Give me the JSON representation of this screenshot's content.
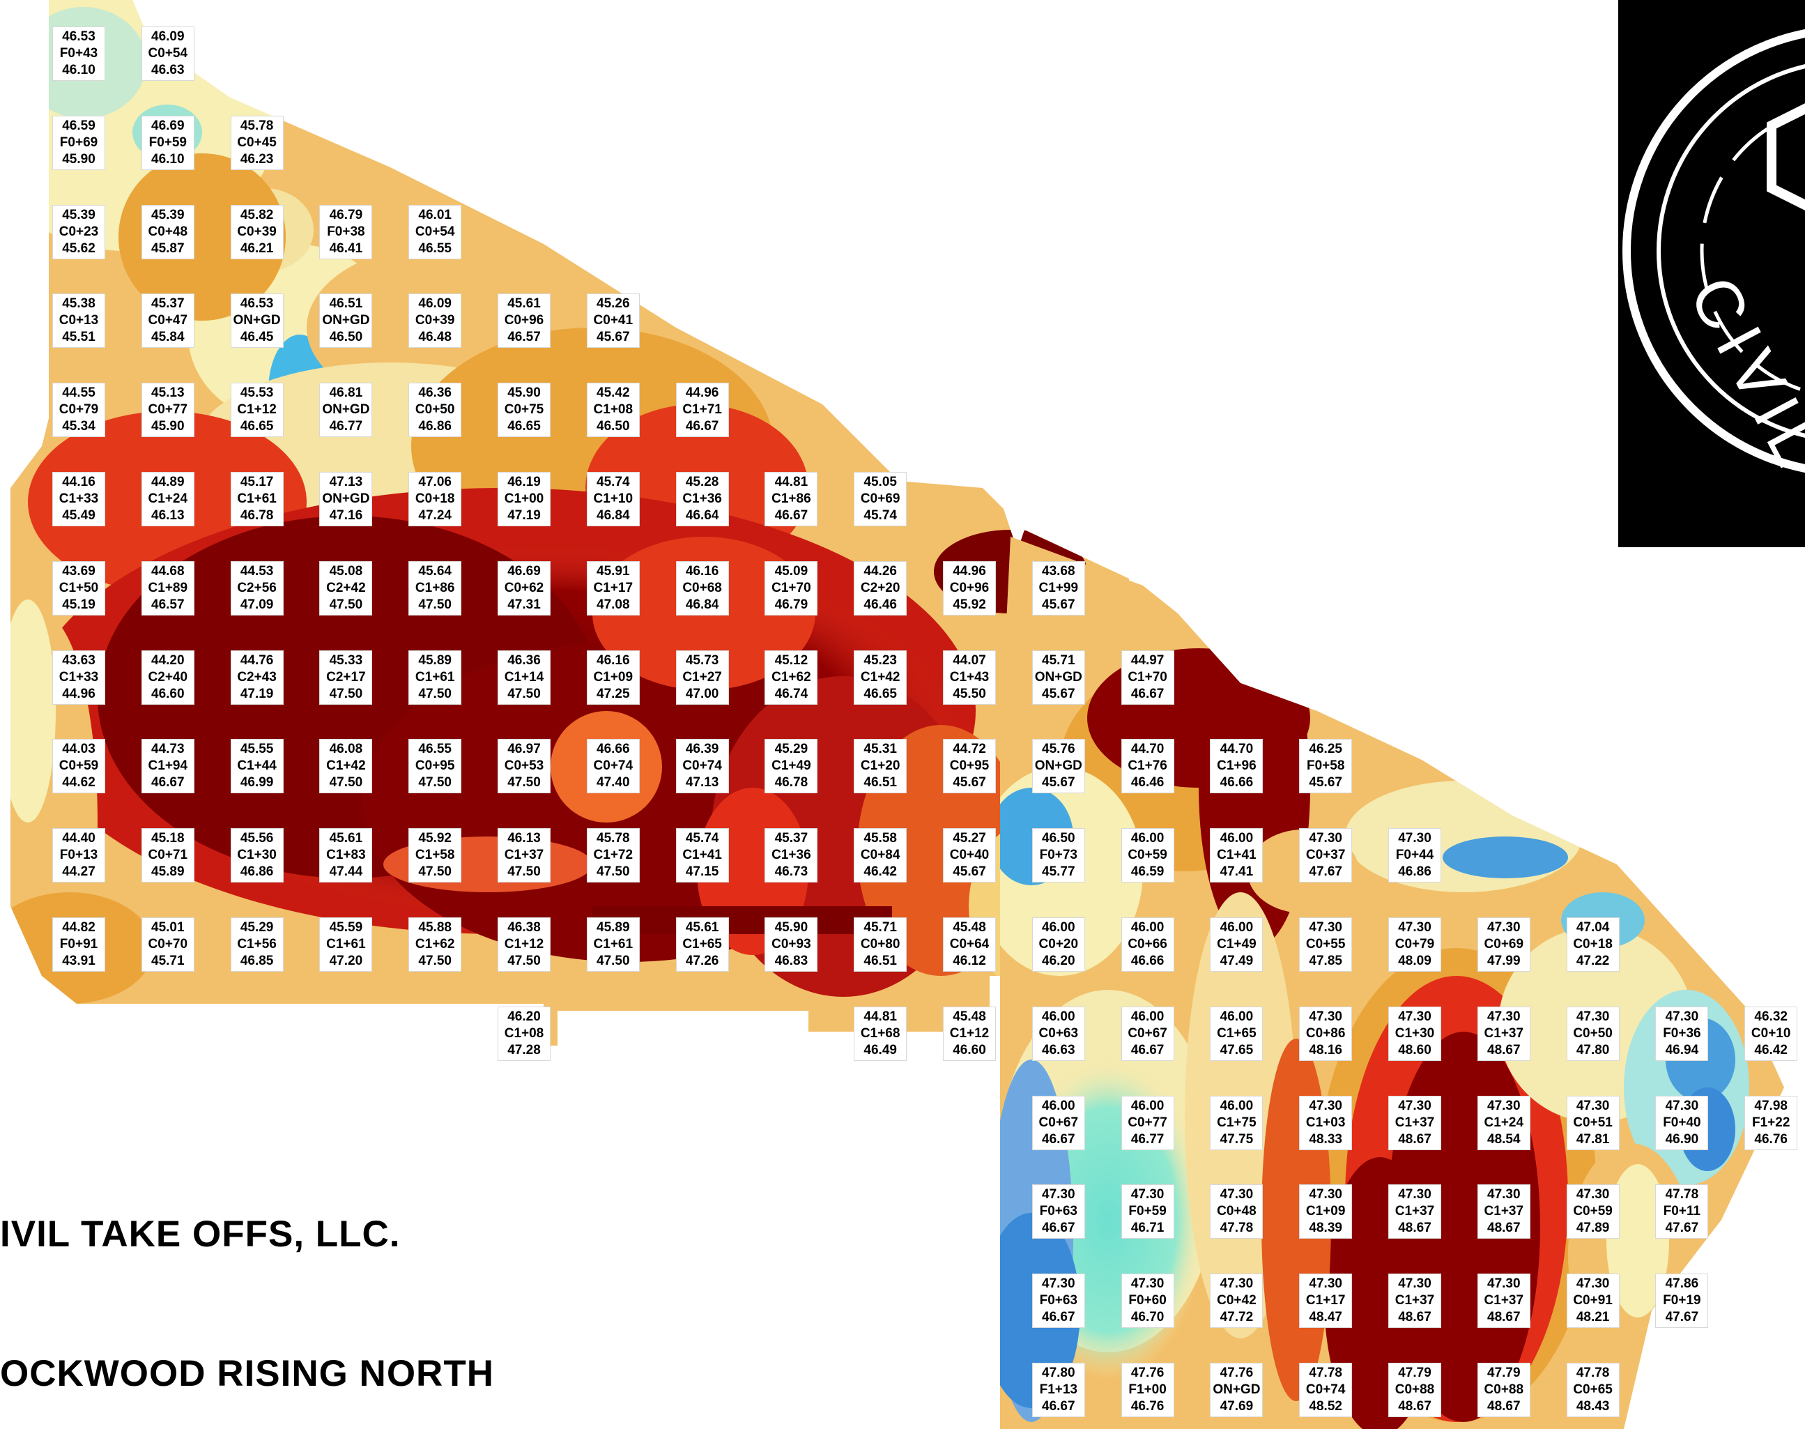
{
  "company_name": "IVIL TAKE OFFS, LLC.",
  "project_name": "OCKWOOD RISING NORTH",
  "logo": {
    "text": "CIVIL T",
    "icon": "hexagon-seal-icon"
  },
  "legend_colors": {
    "lowest": "#2a7fd4",
    "low": "#6ee3cc",
    "mid_low": "#f7efb0",
    "mid": "#eaa43a",
    "mid_high": "#e43a1a",
    "highest": "#8a0000"
  },
  "grid": {
    "columns": 21,
    "rows": 16,
    "cells": [
      {
        "col": 0,
        "row": 0,
        "top": "46.53",
        "mid": "F0+43",
        "bottom": "46.10"
      },
      {
        "col": 1,
        "row": 0,
        "top": "46.09",
        "mid": "C0+54",
        "bottom": "46.63"
      },
      {
        "col": 0,
        "row": 1,
        "top": "46.59",
        "mid": "F0+69",
        "bottom": "45.90"
      },
      {
        "col": 1,
        "row": 1,
        "top": "46.69",
        "mid": "F0+59",
        "bottom": "46.10"
      },
      {
        "col": 2,
        "row": 1,
        "top": "45.78",
        "mid": "C0+45",
        "bottom": "46.23"
      },
      {
        "col": 0,
        "row": 2,
        "top": "45.39",
        "mid": "C0+23",
        "bottom": "45.62"
      },
      {
        "col": 1,
        "row": 2,
        "top": "45.39",
        "mid": "C0+48",
        "bottom": "45.87"
      },
      {
        "col": 2,
        "row": 2,
        "top": "45.82",
        "mid": "C0+39",
        "bottom": "46.21"
      },
      {
        "col": 3,
        "row": 2,
        "top": "46.79",
        "mid": "F0+38",
        "bottom": "46.41"
      },
      {
        "col": 4,
        "row": 2,
        "top": "46.01",
        "mid": "C0+54",
        "bottom": "46.55"
      },
      {
        "col": 0,
        "row": 3,
        "top": "45.38",
        "mid": "C0+13",
        "bottom": "45.51"
      },
      {
        "col": 1,
        "row": 3,
        "top": "45.37",
        "mid": "C0+47",
        "bottom": "45.84"
      },
      {
        "col": 2,
        "row": 3,
        "top": "46.53",
        "mid": "ON+GD",
        "bottom": "46.45"
      },
      {
        "col": 3,
        "row": 3,
        "top": "46.51",
        "mid": "ON+GD",
        "bottom": "46.50"
      },
      {
        "col": 4,
        "row": 3,
        "top": "46.09",
        "mid": "C0+39",
        "bottom": "46.48"
      },
      {
        "col": 5,
        "row": 3,
        "top": "45.61",
        "mid": "C0+96",
        "bottom": "46.57"
      },
      {
        "col": 6,
        "row": 3,
        "top": "45.26",
        "mid": "C0+41",
        "bottom": "45.67"
      },
      {
        "col": 0,
        "row": 4,
        "top": "44.55",
        "mid": "C0+79",
        "bottom": "45.34"
      },
      {
        "col": 1,
        "row": 4,
        "top": "45.13",
        "mid": "C0+77",
        "bottom": "45.90"
      },
      {
        "col": 2,
        "row": 4,
        "top": "45.53",
        "mid": "C1+12",
        "bottom": "46.65"
      },
      {
        "col": 3,
        "row": 4,
        "top": "46.81",
        "mid": "ON+GD",
        "bottom": "46.77"
      },
      {
        "col": 4,
        "row": 4,
        "top": "46.36",
        "mid": "C0+50",
        "bottom": "46.86"
      },
      {
        "col": 5,
        "row": 4,
        "top": "45.90",
        "mid": "C0+75",
        "bottom": "46.65"
      },
      {
        "col": 6,
        "row": 4,
        "top": "45.42",
        "mid": "C1+08",
        "bottom": "46.50"
      },
      {
        "col": 7,
        "row": 4,
        "top": "44.96",
        "mid": "C1+71",
        "bottom": "46.67"
      },
      {
        "col": 0,
        "row": 5,
        "top": "44.16",
        "mid": "C1+33",
        "bottom": "45.49"
      },
      {
        "col": 1,
        "row": 5,
        "top": "44.89",
        "mid": "C1+24",
        "bottom": "46.13"
      },
      {
        "col": 2,
        "row": 5,
        "top": "45.17",
        "mid": "C1+61",
        "bottom": "46.78"
      },
      {
        "col": 3,
        "row": 5,
        "top": "47.13",
        "mid": "ON+GD",
        "bottom": "47.16"
      },
      {
        "col": 4,
        "row": 5,
        "top": "47.06",
        "mid": "C0+18",
        "bottom": "47.24"
      },
      {
        "col": 5,
        "row": 5,
        "top": "46.19",
        "mid": "C1+00",
        "bottom": "47.19"
      },
      {
        "col": 6,
        "row": 5,
        "top": "45.74",
        "mid": "C1+10",
        "bottom": "46.84"
      },
      {
        "col": 7,
        "row": 5,
        "top": "45.28",
        "mid": "C1+36",
        "bottom": "46.64"
      },
      {
        "col": 8,
        "row": 5,
        "top": "44.81",
        "mid": "C1+86",
        "bottom": "46.67"
      },
      {
        "col": 9,
        "row": 5,
        "top": "45.05",
        "mid": "C0+69",
        "bottom": "45.74"
      },
      {
        "col": 0,
        "row": 6,
        "top": "43.69",
        "mid": "C1+50",
        "bottom": "45.19"
      },
      {
        "col": 1,
        "row": 6,
        "top": "44.68",
        "mid": "C1+89",
        "bottom": "46.57"
      },
      {
        "col": 2,
        "row": 6,
        "top": "44.53",
        "mid": "C2+56",
        "bottom": "47.09"
      },
      {
        "col": 3,
        "row": 6,
        "top": "45.08",
        "mid": "C2+42",
        "bottom": "47.50"
      },
      {
        "col": 4,
        "row": 6,
        "top": "45.64",
        "mid": "C1+86",
        "bottom": "47.50"
      },
      {
        "col": 5,
        "row": 6,
        "top": "46.69",
        "mid": "C0+62",
        "bottom": "47.31"
      },
      {
        "col": 6,
        "row": 6,
        "top": "45.91",
        "mid": "C1+17",
        "bottom": "47.08"
      },
      {
        "col": 7,
        "row": 6,
        "top": "46.16",
        "mid": "C0+68",
        "bottom": "46.84"
      },
      {
        "col": 8,
        "row": 6,
        "top": "45.09",
        "mid": "C1+70",
        "bottom": "46.79"
      },
      {
        "col": 9,
        "row": 6,
        "top": "44.26",
        "mid": "C2+20",
        "bottom": "46.46"
      },
      {
        "col": 10,
        "row": 6,
        "top": "44.96",
        "mid": "C0+96",
        "bottom": "45.92"
      },
      {
        "col": 11,
        "row": 6,
        "top": "43.68",
        "mid": "C1+99",
        "bottom": "45.67"
      },
      {
        "col": 0,
        "row": 7,
        "top": "43.63",
        "mid": "C1+33",
        "bottom": "44.96"
      },
      {
        "col": 1,
        "row": 7,
        "top": "44.20",
        "mid": "C2+40",
        "bottom": "46.60"
      },
      {
        "col": 2,
        "row": 7,
        "top": "44.76",
        "mid": "C2+43",
        "bottom": "47.19"
      },
      {
        "col": 3,
        "row": 7,
        "top": "45.33",
        "mid": "C2+17",
        "bottom": "47.50"
      },
      {
        "col": 4,
        "row": 7,
        "top": "45.89",
        "mid": "C1+61",
        "bottom": "47.50"
      },
      {
        "col": 5,
        "row": 7,
        "top": "46.36",
        "mid": "C1+14",
        "bottom": "47.50"
      },
      {
        "col": 6,
        "row": 7,
        "top": "46.16",
        "mid": "C1+09",
        "bottom": "47.25"
      },
      {
        "col": 7,
        "row": 7,
        "top": "45.73",
        "mid": "C1+27",
        "bottom": "47.00"
      },
      {
        "col": 8,
        "row": 7,
        "top": "45.12",
        "mid": "C1+62",
        "bottom": "46.74"
      },
      {
        "col": 9,
        "row": 7,
        "top": "45.23",
        "mid": "C1+42",
        "bottom": "46.65"
      },
      {
        "col": 10,
        "row": 7,
        "top": "44.07",
        "mid": "C1+43",
        "bottom": "45.50"
      },
      {
        "col": 11,
        "row": 7,
        "top": "45.71",
        "mid": "ON+GD",
        "bottom": "45.67"
      },
      {
        "col": 12,
        "row": 7,
        "top": "44.97",
        "mid": "C1+70",
        "bottom": "46.67"
      },
      {
        "col": 0,
        "row": 8,
        "top": "44.03",
        "mid": "C0+59",
        "bottom": "44.62"
      },
      {
        "col": 1,
        "row": 8,
        "top": "44.73",
        "mid": "C1+94",
        "bottom": "46.67"
      },
      {
        "col": 2,
        "row": 8,
        "top": "45.55",
        "mid": "C1+44",
        "bottom": "46.99"
      },
      {
        "col": 3,
        "row": 8,
        "top": "46.08",
        "mid": "C1+42",
        "bottom": "47.50"
      },
      {
        "col": 4,
        "row": 8,
        "top": "46.55",
        "mid": "C0+95",
        "bottom": "47.50"
      },
      {
        "col": 5,
        "row": 8,
        "top": "46.97",
        "mid": "C0+53",
        "bottom": "47.50"
      },
      {
        "col": 6,
        "row": 8,
        "top": "46.66",
        "mid": "C0+74",
        "bottom": "47.40"
      },
      {
        "col": 7,
        "row": 8,
        "top": "46.39",
        "mid": "C0+74",
        "bottom": "47.13"
      },
      {
        "col": 8,
        "row": 8,
        "top": "45.29",
        "mid": "C1+49",
        "bottom": "46.78"
      },
      {
        "col": 9,
        "row": 8,
        "top": "45.31",
        "mid": "C1+20",
        "bottom": "46.51"
      },
      {
        "col": 10,
        "row": 8,
        "top": "44.72",
        "mid": "C0+95",
        "bottom": "45.67"
      },
      {
        "col": 11,
        "row": 8,
        "top": "45.76",
        "mid": "ON+GD",
        "bottom": "45.67"
      },
      {
        "col": 12,
        "row": 8,
        "top": "44.70",
        "mid": "C1+76",
        "bottom": "46.46"
      },
      {
        "col": 13,
        "row": 8,
        "top": "44.70",
        "mid": "C1+96",
        "bottom": "46.66"
      },
      {
        "col": 14,
        "row": 8,
        "top": "46.25",
        "mid": "F0+58",
        "bottom": "45.67"
      },
      {
        "col": 0,
        "row": 9,
        "top": "44.40",
        "mid": "F0+13",
        "bottom": "44.27"
      },
      {
        "col": 1,
        "row": 9,
        "top": "45.18",
        "mid": "C0+71",
        "bottom": "45.89"
      },
      {
        "col": 2,
        "row": 9,
        "top": "45.56",
        "mid": "C1+30",
        "bottom": "46.86"
      },
      {
        "col": 3,
        "row": 9,
        "top": "45.61",
        "mid": "C1+83",
        "bottom": "47.44"
      },
      {
        "col": 4,
        "row": 9,
        "top": "45.92",
        "mid": "C1+58",
        "bottom": "47.50"
      },
      {
        "col": 5,
        "row": 9,
        "top": "46.13",
        "mid": "C1+37",
        "bottom": "47.50"
      },
      {
        "col": 6,
        "row": 9,
        "top": "45.78",
        "mid": "C1+72",
        "bottom": "47.50"
      },
      {
        "col": 7,
        "row": 9,
        "top": "45.74",
        "mid": "C1+41",
        "bottom": "47.15"
      },
      {
        "col": 8,
        "row": 9,
        "top": "45.37",
        "mid": "C1+36",
        "bottom": "46.73"
      },
      {
        "col": 9,
        "row": 9,
        "top": "45.58",
        "mid": "C0+84",
        "bottom": "46.42"
      },
      {
        "col": 10,
        "row": 9,
        "top": "45.27",
        "mid": "C0+40",
        "bottom": "45.67"
      },
      {
        "col": 11,
        "row": 9,
        "top": "46.50",
        "mid": "F0+73",
        "bottom": "45.77"
      },
      {
        "col": 12,
        "row": 9,
        "top": "46.00",
        "mid": "C0+59",
        "bottom": "46.59"
      },
      {
        "col": 13,
        "row": 9,
        "top": "46.00",
        "mid": "C1+41",
        "bottom": "47.41"
      },
      {
        "col": 14,
        "row": 9,
        "top": "47.30",
        "mid": "C0+37",
        "bottom": "47.67"
      },
      {
        "col": 15,
        "row": 9,
        "top": "47.30",
        "mid": "F0+44",
        "bottom": "46.86"
      },
      {
        "col": 0,
        "row": 10,
        "top": "44.82",
        "mid": "F0+91",
        "bottom": "43.91"
      },
      {
        "col": 1,
        "row": 10,
        "top": "45.01",
        "mid": "C0+70",
        "bottom": "45.71"
      },
      {
        "col": 2,
        "row": 10,
        "top": "45.29",
        "mid": "C1+56",
        "bottom": "46.85"
      },
      {
        "col": 3,
        "row": 10,
        "top": "45.59",
        "mid": "C1+61",
        "bottom": "47.20"
      },
      {
        "col": 4,
        "row": 10,
        "top": "45.88",
        "mid": "C1+62",
        "bottom": "47.50"
      },
      {
        "col": 5,
        "row": 10,
        "top": "46.38",
        "mid": "C1+12",
        "bottom": "47.50"
      },
      {
        "col": 6,
        "row": 10,
        "top": "45.89",
        "mid": "C1+61",
        "bottom": "47.50"
      },
      {
        "col": 7,
        "row": 10,
        "top": "45.61",
        "mid": "C1+65",
        "bottom": "47.26"
      },
      {
        "col": 8,
        "row": 10,
        "top": "45.90",
        "mid": "C0+93",
        "bottom": "46.83"
      },
      {
        "col": 9,
        "row": 10,
        "top": "45.71",
        "mid": "C0+80",
        "bottom": "46.51"
      },
      {
        "col": 10,
        "row": 10,
        "top": "45.48",
        "mid": "C0+64",
        "bottom": "46.12"
      },
      {
        "col": 11,
        "row": 10,
        "top": "46.00",
        "mid": "C0+20",
        "bottom": "46.20"
      },
      {
        "col": 12,
        "row": 10,
        "top": "46.00",
        "mid": "C0+66",
        "bottom": "46.66"
      },
      {
        "col": 13,
        "row": 10,
        "top": "46.00",
        "mid": "C1+49",
        "bottom": "47.49"
      },
      {
        "col": 14,
        "row": 10,
        "top": "47.30",
        "mid": "C0+55",
        "bottom": "47.85"
      },
      {
        "col": 15,
        "row": 10,
        "top": "47.30",
        "mid": "C0+79",
        "bottom": "48.09"
      },
      {
        "col": 16,
        "row": 10,
        "top": "47.30",
        "mid": "C0+69",
        "bottom": "47.99"
      },
      {
        "col": 17,
        "row": 10,
        "top": "47.04",
        "mid": "C0+18",
        "bottom": "47.22"
      },
      {
        "col": 5,
        "row": 11,
        "top": "46.20",
        "mid": "C1+08",
        "bottom": "47.28"
      },
      {
        "col": 9,
        "row": 11,
        "top": "44.81",
        "mid": "C1+68",
        "bottom": "46.49"
      },
      {
        "col": 10,
        "row": 11,
        "top": "45.48",
        "mid": "C1+12",
        "bottom": "46.60"
      },
      {
        "col": 11,
        "row": 11,
        "top": "46.00",
        "mid": "C0+63",
        "bottom": "46.63"
      },
      {
        "col": 12,
        "row": 11,
        "top": "46.00",
        "mid": "C0+67",
        "bottom": "46.67"
      },
      {
        "col": 13,
        "row": 11,
        "top": "46.00",
        "mid": "C1+65",
        "bottom": "47.65"
      },
      {
        "col": 14,
        "row": 11,
        "top": "47.30",
        "mid": "C0+86",
        "bottom": "48.16"
      },
      {
        "col": 15,
        "row": 11,
        "top": "47.30",
        "mid": "C1+30",
        "bottom": "48.60"
      },
      {
        "col": 16,
        "row": 11,
        "top": "47.30",
        "mid": "C1+37",
        "bottom": "48.67"
      },
      {
        "col": 17,
        "row": 11,
        "top": "47.30",
        "mid": "C0+50",
        "bottom": "47.80"
      },
      {
        "col": 18,
        "row": 11,
        "top": "47.30",
        "mid": "F0+36",
        "bottom": "46.94"
      },
      {
        "col": 19,
        "row": 11,
        "top": "46.32",
        "mid": "C0+10",
        "bottom": "46.42"
      },
      {
        "col": 11,
        "row": 12,
        "top": "46.00",
        "mid": "C0+67",
        "bottom": "46.67"
      },
      {
        "col": 12,
        "row": 12,
        "top": "46.00",
        "mid": "C0+77",
        "bottom": "46.77"
      },
      {
        "col": 13,
        "row": 12,
        "top": "46.00",
        "mid": "C1+75",
        "bottom": "47.75"
      },
      {
        "col": 14,
        "row": 12,
        "top": "47.30",
        "mid": "C1+03",
        "bottom": "48.33"
      },
      {
        "col": 15,
        "row": 12,
        "top": "47.30",
        "mid": "C1+37",
        "bottom": "48.67"
      },
      {
        "col": 16,
        "row": 12,
        "top": "47.30",
        "mid": "C1+24",
        "bottom": "48.54"
      },
      {
        "col": 17,
        "row": 12,
        "top": "47.30",
        "mid": "C0+51",
        "bottom": "47.81"
      },
      {
        "col": 18,
        "row": 12,
        "top": "47.30",
        "mid": "F0+40",
        "bottom": "46.90"
      },
      {
        "col": 19,
        "row": 12,
        "top": "47.98",
        "mid": "F1+22",
        "bottom": "46.76"
      },
      {
        "col": 11,
        "row": 13,
        "top": "47.30",
        "mid": "F0+63",
        "bottom": "46.67"
      },
      {
        "col": 12,
        "row": 13,
        "top": "47.30",
        "mid": "F0+59",
        "bottom": "46.71"
      },
      {
        "col": 13,
        "row": 13,
        "top": "47.30",
        "mid": "C0+48",
        "bottom": "47.78"
      },
      {
        "col": 14,
        "row": 13,
        "top": "47.30",
        "mid": "C1+09",
        "bottom": "48.39"
      },
      {
        "col": 15,
        "row": 13,
        "top": "47.30",
        "mid": "C1+37",
        "bottom": "48.67"
      },
      {
        "col": 16,
        "row": 13,
        "top": "47.30",
        "mid": "C1+37",
        "bottom": "48.67"
      },
      {
        "col": 17,
        "row": 13,
        "top": "47.30",
        "mid": "C0+59",
        "bottom": "47.89"
      },
      {
        "col": 18,
        "row": 13,
        "top": "47.78",
        "mid": "F0+11",
        "bottom": "47.67"
      },
      {
        "col": 11,
        "row": 14,
        "top": "47.30",
        "mid": "F0+63",
        "bottom": "46.67"
      },
      {
        "col": 12,
        "row": 14,
        "top": "47.30",
        "mid": "F0+60",
        "bottom": "46.70"
      },
      {
        "col": 13,
        "row": 14,
        "top": "47.30",
        "mid": "C0+42",
        "bottom": "47.72"
      },
      {
        "col": 14,
        "row": 14,
        "top": "47.30",
        "mid": "C1+17",
        "bottom": "48.47"
      },
      {
        "col": 15,
        "row": 14,
        "top": "47.30",
        "mid": "C1+37",
        "bottom": "48.67"
      },
      {
        "col": 16,
        "row": 14,
        "top": "47.30",
        "mid": "C1+37",
        "bottom": "48.67"
      },
      {
        "col": 17,
        "row": 14,
        "top": "47.30",
        "mid": "C0+91",
        "bottom": "48.21"
      },
      {
        "col": 18,
        "row": 14,
        "top": "47.86",
        "mid": "F0+19",
        "bottom": "47.67"
      },
      {
        "col": 11,
        "row": 15,
        "top": "47.80",
        "mid": "F1+13",
        "bottom": "46.67"
      },
      {
        "col": 12,
        "row": 15,
        "top": "47.76",
        "mid": "F1+00",
        "bottom": "46.76"
      },
      {
        "col": 13,
        "row": 15,
        "top": "47.76",
        "mid": "ON+GD",
        "bottom": "47.69"
      },
      {
        "col": 14,
        "row": 15,
        "top": "47.78",
        "mid": "C0+74",
        "bottom": "48.52"
      },
      {
        "col": 15,
        "row": 15,
        "top": "47.79",
        "mid": "C0+88",
        "bottom": "48.67"
      },
      {
        "col": 16,
        "row": 15,
        "top": "47.79",
        "mid": "C0+88",
        "bottom": "48.67"
      },
      {
        "col": 17,
        "row": 15,
        "top": "47.78",
        "mid": "C0+65",
        "bottom": "48.43"
      }
    ]
  }
}
